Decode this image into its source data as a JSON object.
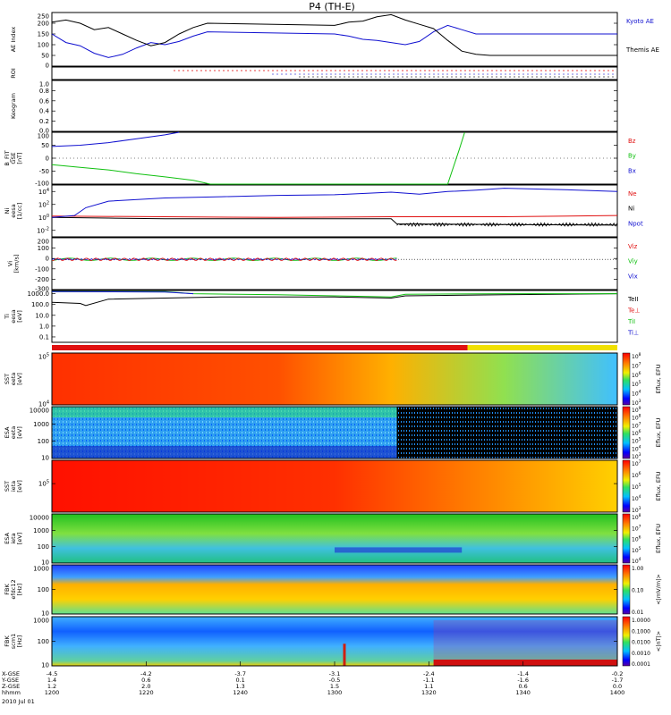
{
  "title": "P4 (TH-E)",
  "date_label": "2010 Jul 01",
  "colors": {
    "red": "#e01010",
    "green": "#10c010",
    "blue": "#1010d0",
    "black": "#000000"
  },
  "chart_data": [
    {
      "id": "ae",
      "type": "line",
      "ylabel": "AE Index",
      "ylim": [
        0,
        250
      ],
      "ticks": [
        "250",
        "200",
        "150",
        "100",
        "50",
        "0"
      ],
      "series": [
        {
          "name": "Kyoto AE",
          "color": "#1010d0",
          "x": [
            1200,
            1205,
            1210,
            1215,
            1220,
            1225,
            1230,
            1235,
            1240,
            1245,
            1250,
            1255,
            1300,
            1305,
            1310,
            1315,
            1320,
            1325,
            1330,
            1335,
            1340,
            1345,
            1350,
            1355,
            1400
          ],
          "y": [
            150,
            110,
            95,
            60,
            40,
            55,
            85,
            110,
            100,
            115,
            140,
            160,
            150,
            140,
            125,
            120,
            110,
            100,
            115,
            160,
            190,
            170,
            150,
            150,
            150
          ]
        },
        {
          "name": "Themis AE",
          "color": "#000000",
          "x": [
            1200,
            1205,
            1210,
            1215,
            1220,
            1225,
            1230,
            1235,
            1240,
            1245,
            1250,
            1255,
            1300,
            1305,
            1310,
            1315,
            1320,
            1325,
            1330,
            1335,
            1340,
            1345,
            1350,
            1355,
            1400
          ],
          "y": [
            205,
            215,
            200,
            170,
            180,
            150,
            120,
            95,
            110,
            150,
            180,
            200,
            190,
            205,
            210,
            230,
            240,
            215,
            195,
            175,
            120,
            70,
            55,
            50,
            50
          ]
        }
      ]
    },
    {
      "id": "roi",
      "type": "scatter",
      "ylabel": "ROI"
    },
    {
      "id": "keo",
      "type": "line",
      "ylabel": "Keogram",
      "ticks": [
        "1.0",
        "0.8",
        "0.6",
        "0.4",
        "0.2",
        "0.0"
      ]
    },
    {
      "id": "bfit",
      "type": "line",
      "ylabel": "B_FIT\nGSE\n[nT]",
      "ylim": [
        -100,
        100
      ],
      "ticks": [
        "100",
        "50",
        "0",
        "-50",
        "-100"
      ],
      "series": [
        {
          "name": "Bz",
          "color": "#e01010",
          "x": [],
          "y": []
        },
        {
          "name": "By",
          "color": "#10c010",
          "x": [
            1200,
            1210,
            1220,
            1230,
            1240,
            1250,
            1256,
            1340,
            1344,
            1346
          ],
          "y": [
            -25,
            -35,
            -45,
            -60,
            -72,
            -85,
            -100,
            -100,
            30,
            100
          ]
        },
        {
          "name": "Bx",
          "color": "#1010d0",
          "x": [
            1200,
            1210,
            1220,
            1230,
            1240,
            1245
          ],
          "y": [
            45,
            50,
            60,
            75,
            90,
            100
          ]
        }
      ]
    },
    {
      "id": "ni",
      "type": "line",
      "ylabel": "Ni\neesa\n[1/cc]",
      "ylim_log": [
        -3,
        5
      ],
      "ticks": [
        "10^4",
        "10^2",
        "10^0",
        "10^-2"
      ],
      "series": [
        {
          "name": "Ne",
          "color": "#e01010",
          "x": [
            1200,
            1240,
            1280,
            1320,
            1360,
            1400
          ],
          "y": [
            0.2,
            0.1,
            0.0,
            0.1,
            0.1,
            0.3
          ]
        },
        {
          "name": "Ni",
          "color": "#000000",
          "x": [
            1200,
            1220,
            1240,
            1280,
            1320,
            1322,
            1360,
            1400
          ],
          "y": [
            0.0,
            -0.1,
            -0.2,
            -0.2,
            -0.2,
            -1.0,
            -1.1,
            -1.2
          ]
        },
        {
          "name": "Npot",
          "color": "#1010d0",
          "x": [
            1200,
            1208,
            1212,
            1220,
            1240,
            1260,
            1280,
            1300,
            1320,
            1330,
            1340,
            1350,
            1360,
            1380,
            1400
          ],
          "y": [
            0.0,
            0.3,
            1.5,
            2.5,
            3.0,
            3.2,
            3.4,
            3.5,
            3.9,
            3.6,
            4.0,
            4.2,
            4.5,
            4.3,
            4.0
          ]
        }
      ]
    },
    {
      "id": "vi",
      "type": "line",
      "ylabel": "Vi\n[km/s]",
      "ylim": [
        -350,
        250
      ],
      "ticks": [
        "200",
        "100",
        "0",
        "-100",
        "-200",
        "-300"
      ],
      "series": [
        {
          "name": "Viz",
          "color": "#e01010"
        },
        {
          "name": "Viy",
          "color": "#10c010"
        },
        {
          "name": "Vix",
          "color": "#1010d0"
        }
      ]
    },
    {
      "id": "ti",
      "type": "line",
      "ylabel": "Ti\neesa\n[eV]",
      "ylim_log": [
        -1.5,
        3.3
      ],
      "ticks": [
        "1000.0",
        "100.0",
        "10.0",
        "1.0",
        "0.1"
      ],
      "series": [
        {
          "name": "TeII",
          "color": "#000000",
          "x": [
            1200,
            1210,
            1212,
            1220,
            1240,
            1260,
            1300,
            1320,
            1325,
            1360,
            1400
          ],
          "y": [
            2.2,
            2.1,
            1.9,
            2.5,
            2.6,
            2.7,
            2.7,
            2.6,
            2.8,
            2.9,
            3.0
          ]
        },
        {
          "name": "Te⊥",
          "color": "#e01010",
          "x": [],
          "y": []
        },
        {
          "name": "TiI",
          "color": "#10c010",
          "x": [
            1200,
            1240,
            1250,
            1280,
            1300,
            1320,
            1325,
            1360,
            1400
          ],
          "y": [
            3.2,
            3.2,
            3.0,
            2.9,
            2.8,
            2.7,
            2.95,
            3.0,
            3.0
          ]
        },
        {
          "name": "Ti⊥",
          "color": "#1010d0",
          "x": [
            1200,
            1240,
            1250
          ],
          "y": [
            3.2,
            3.15,
            3.0
          ]
        }
      ]
    },
    {
      "id": "sst_e",
      "type": "heatmap",
      "ylabel": "SST\neeta\n[eV]",
      "ticks": [
        "10^5",
        "10^4"
      ],
      "zlabel": "Eflux, EFU",
      "zticks": [
        "10^8",
        "10^7",
        "10^6",
        "10^5",
        "10^4",
        "10^3"
      ]
    },
    {
      "id": "esa_e",
      "type": "heatmap",
      "ylabel": "ESA\neeta\n[eV]",
      "ticks": [
        "10000",
        "1000",
        "100",
        "10"
      ],
      "zlabel": "Eflux, EFU",
      "zticks": [
        "10^9",
        "10^8",
        "10^7",
        "10^6",
        "10^5",
        "10^4",
        "10^3"
      ]
    },
    {
      "id": "sst_i",
      "type": "heatmap",
      "ylabel": "SST\nieta\n[eV]",
      "ticks": [
        "10^5"
      ],
      "zlabel": "Eflux, EFU",
      "zticks": [
        "10^7",
        "10^6",
        "10^5",
        "10^4",
        "10^3"
      ]
    },
    {
      "id": "esa_i",
      "type": "heatmap",
      "ylabel": "ESA\nieta\n[eV]",
      "ticks": [
        "10000",
        "1000",
        "100",
        "10"
      ],
      "zlabel": "Eflux, EFU",
      "zticks": [
        "10^8",
        "10^7",
        "10^6",
        "10^5",
        "10^4"
      ]
    },
    {
      "id": "fbk1",
      "type": "heatmap",
      "ylabel": "FBK\nefdc12\n[Hz]",
      "ticks": [
        "1000",
        "100",
        "10"
      ],
      "zlabel": "<|mV/m|>",
      "zticks": [
        "1.00",
        "0.10",
        "0.01"
      ]
    },
    {
      "id": "fbk2",
      "type": "heatmap",
      "ylabel": "FBK\nscm1\n[Hz]",
      "ticks": [
        "1000",
        "100",
        "10"
      ],
      "zlabel": "<|nT|>",
      "zticks": [
        "1.0000",
        "0.1000",
        "0.0100",
        "0.0010",
        "0.0001"
      ]
    }
  ],
  "xaxis": {
    "rows": [
      {
        "label": "X-GSE",
        "values": [
          "-4.5",
          "-4.2",
          "-3.7",
          "-3.1",
          "-2.4",
          "-1.4",
          "-0.2"
        ]
      },
      {
        "label": "Y-GSE",
        "values": [
          "1.4",
          "0.6",
          "0.1",
          "-0.5",
          "-1.1",
          "-1.6",
          "-1.7"
        ]
      },
      {
        "label": "Z-GSE",
        "values": [
          "1.2",
          "2.0",
          "1.3",
          "1.5",
          "1.1",
          "0.6",
          "0.0"
        ]
      },
      {
        "label": "hhmm",
        "values": [
          "1200",
          "1220",
          "1240",
          "1300",
          "1320",
          "1340",
          "1400"
        ]
      }
    ]
  }
}
